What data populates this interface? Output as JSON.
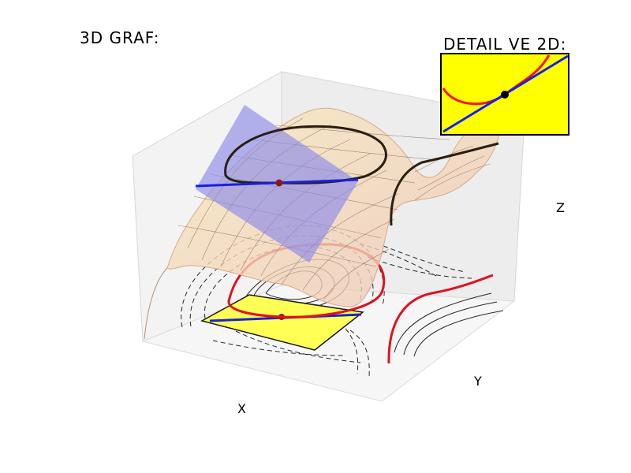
{
  "chart_data": [
    {
      "type": "surface3d",
      "title": "3D GRAF:",
      "xlabel": "X",
      "ylabel": "Y",
      "zlabel": "Z",
      "grid": true,
      "colors": {
        "surface": "#f1d7a6",
        "tangent_plane": "#8d8be8",
        "level_curve_3d": "#2a1f10",
        "level_curve_projected": "#e0121f",
        "tangent_line": "#1822d6",
        "contours": "#333333",
        "projected_patch": "#ffff55",
        "point": "#8b1a16"
      }
    },
    {
      "type": "line",
      "title": "DETAIL VE 2D:",
      "colors": {
        "background": "#ffff00",
        "curve": "#ff1010",
        "tangent": "#1020ff",
        "point": "#000000"
      }
    }
  ]
}
